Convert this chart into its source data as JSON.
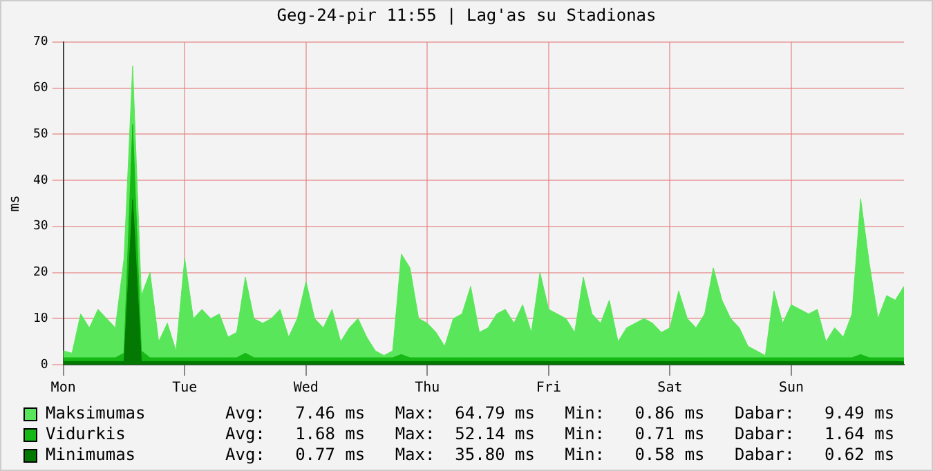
{
  "chart_data": {
    "type": "area",
    "title": "Geg-24-pir 11:55 | Lag'as su Stadionas",
    "ylabel": "ms",
    "categories": [
      "Mon",
      null,
      null,
      null,
      null,
      null,
      null,
      null,
      null,
      null,
      null,
      null,
      null,
      null,
      "Tue",
      null,
      null,
      null,
      null,
      null,
      null,
      null,
      null,
      null,
      null,
      null,
      null,
      null,
      "Wed",
      null,
      null,
      null,
      null,
      null,
      null,
      null,
      null,
      null,
      null,
      null,
      null,
      null,
      "Thu",
      null,
      null,
      null,
      null,
      null,
      null,
      null,
      null,
      null,
      null,
      null,
      null,
      null,
      "Fri",
      null,
      null,
      null,
      null,
      null,
      null,
      null,
      null,
      null,
      null,
      null,
      null,
      null,
      "Sat",
      null,
      null,
      null,
      null,
      null,
      null,
      null,
      null,
      null,
      null,
      null,
      null,
      null,
      "Sun",
      null,
      null,
      null,
      null,
      null,
      null,
      null,
      null,
      null,
      null,
      null,
      null,
      null
    ],
    "ylim": [
      0,
      70
    ],
    "yticks": [
      0,
      10,
      20,
      30,
      40,
      50,
      60,
      70
    ],
    "grid": true,
    "legend": "bottom",
    "annotations": [
      "Avg:   7.46 ms   Max:  64.79 ms   Min:   0.86 ms   Dabar:   9.49 ms",
      "Avg:   1.68 ms   Max:  52.14 ms   Min:   0.71 ms   Dabar:   1.64 ms",
      "Avg:   0.77 ms   Max:  35.80 ms   Min:   0.58 ms   Dabar:   0.62 ms"
    ],
    "series": [
      {
        "name": "Maksimumas",
        "color": "#5ae65a",
        "values": [
          3,
          2.5,
          11,
          8,
          12,
          10,
          8,
          23,
          64.8,
          15,
          20,
          5,
          9,
          3,
          23,
          10,
          12,
          10,
          11,
          6,
          7,
          19,
          10,
          9,
          10,
          12,
          6,
          10,
          18,
          10,
          8,
          12,
          5,
          8,
          10,
          6,
          3,
          2,
          3,
          24,
          21,
          10,
          9,
          7,
          4,
          10,
          11,
          17,
          7,
          8,
          11,
          12,
          9,
          13,
          7,
          20,
          12,
          11,
          10,
          7,
          19,
          11,
          9,
          14,
          5,
          8,
          9,
          10,
          9,
          7,
          8,
          16,
          10,
          8,
          11,
          21,
          14,
          10,
          8,
          4,
          3,
          2,
          16,
          9,
          13,
          12,
          11,
          12,
          5,
          8,
          6,
          11,
          36,
          22,
          10,
          15,
          14,
          17
        ]
      },
      {
        "name": "Vidurkis",
        "color": "#16b816",
        "values": [
          1.5,
          1.5,
          1.5,
          1.5,
          1.5,
          1.5,
          1.5,
          2.5,
          52.1,
          3,
          1.5,
          1.5,
          1.5,
          1.5,
          1.5,
          1.5,
          1.5,
          1.5,
          1.5,
          1.5,
          1.5,
          2.5,
          1.5,
          1.5,
          1.5,
          1.5,
          1.5,
          1.5,
          1.5,
          1.5,
          1.5,
          1.5,
          1.5,
          1.5,
          1.5,
          1.5,
          1.5,
          1.5,
          1.5,
          2.2,
          1.5,
          1.5,
          1.5,
          1.5,
          1.5,
          1.5,
          1.5,
          1.5,
          1.5,
          1.5,
          1.5,
          1.5,
          1.5,
          1.5,
          1.5,
          1.5,
          1.5,
          1.5,
          1.5,
          1.5,
          1.5,
          1.5,
          1.5,
          1.5,
          1.5,
          1.5,
          1.5,
          1.5,
          1.5,
          1.5,
          1.5,
          1.5,
          1.5,
          1.5,
          1.5,
          1.5,
          1.5,
          1.5,
          1.5,
          1.5,
          1.5,
          1.5,
          1.5,
          1.5,
          1.5,
          1.5,
          1.5,
          1.5,
          1.5,
          1.5,
          1.5,
          1.5,
          2.2,
          1.5,
          1.5,
          1.5,
          1.5,
          1.5
        ]
      },
      {
        "name": "Minimumas",
        "color": "#037803",
        "values": [
          0.7,
          0.7,
          0.7,
          0.7,
          0.7,
          0.7,
          0.7,
          0.7,
          35.8,
          0.7,
          0.7,
          0.7,
          0.7,
          0.7,
          0.7,
          0.7,
          0.7,
          0.7,
          0.7,
          0.7,
          0.7,
          0.7,
          0.7,
          0.7,
          0.7,
          0.7,
          0.7,
          0.7,
          0.7,
          0.7,
          0.7,
          0.7,
          0.7,
          0.7,
          0.7,
          0.7,
          0.7,
          0.7,
          0.7,
          0.7,
          0.7,
          0.7,
          0.7,
          0.7,
          0.7,
          0.7,
          0.7,
          0.7,
          0.7,
          0.7,
          0.7,
          0.7,
          0.7,
          0.7,
          0.7,
          0.7,
          0.7,
          0.7,
          0.7,
          0.7,
          0.7,
          0.7,
          0.7,
          0.7,
          0.7,
          0.7,
          0.7,
          0.7,
          0.7,
          0.7,
          0.7,
          0.7,
          0.7,
          0.7,
          0.7,
          0.7,
          0.7,
          0.7,
          0.7,
          0.7,
          0.7,
          0.7,
          0.7,
          0.7,
          0.7,
          0.7,
          0.7,
          0.7,
          0.7,
          0.7,
          0.7,
          0.7,
          0.7,
          0.7,
          0.7,
          0.7,
          0.7,
          0.6
        ]
      }
    ]
  }
}
